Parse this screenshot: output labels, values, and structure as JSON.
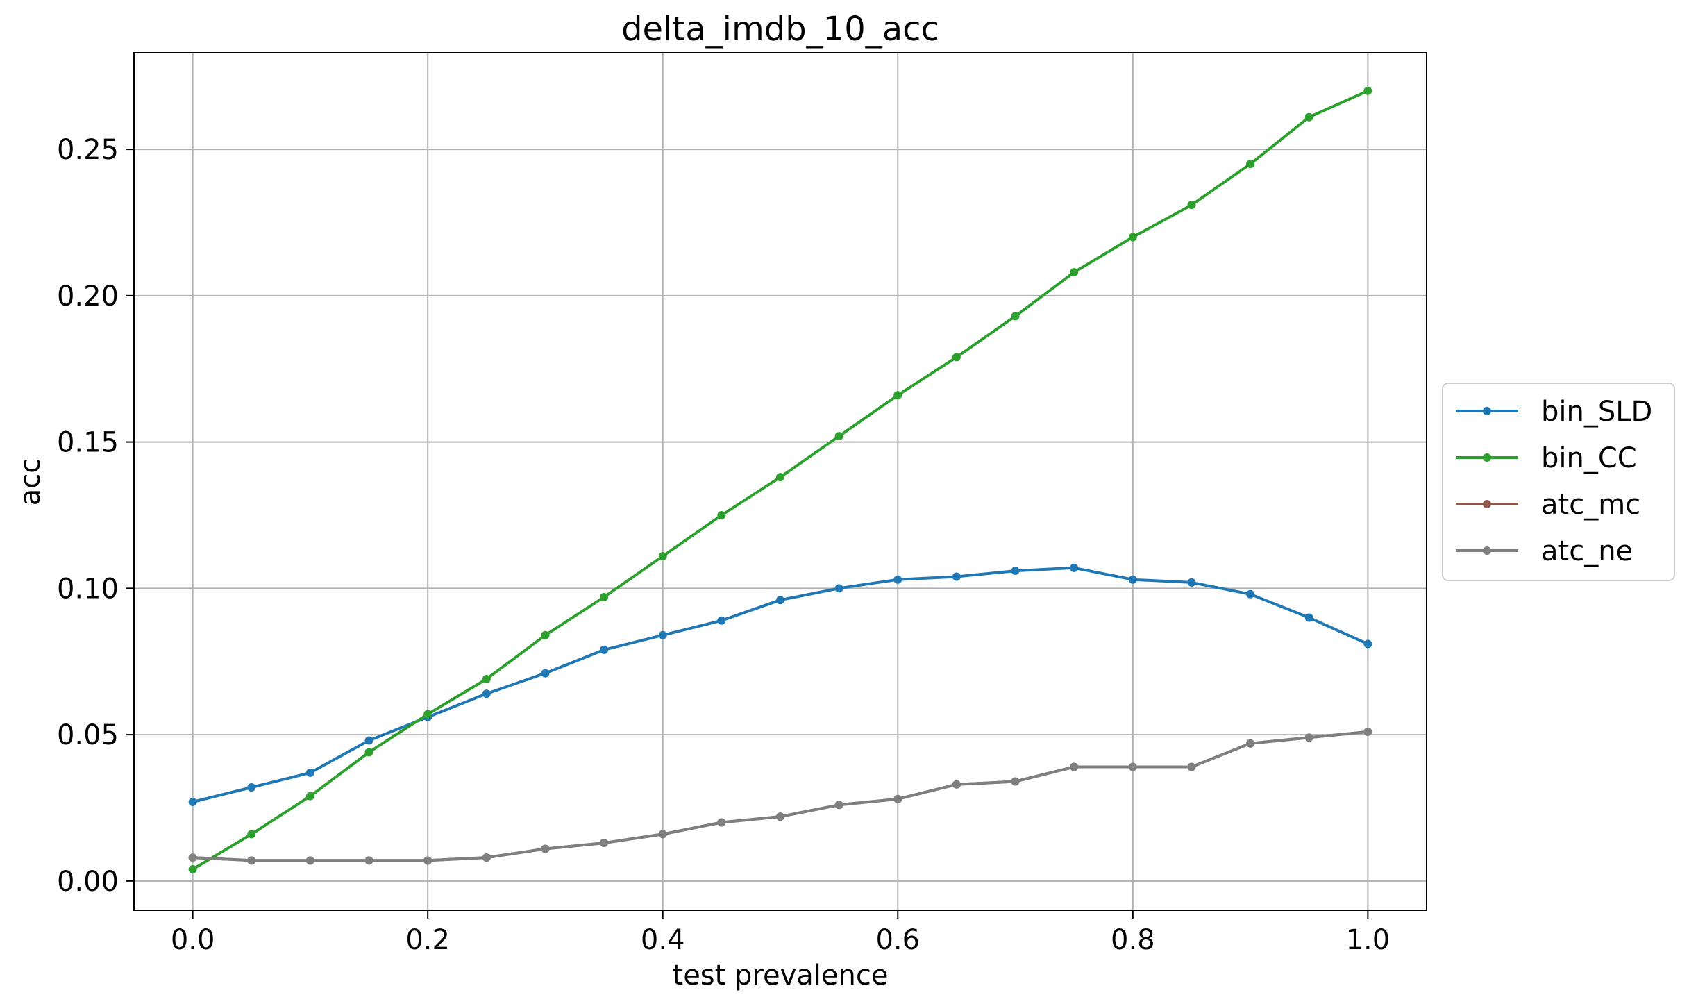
{
  "chart_data": {
    "type": "line",
    "title": "delta_imdb_10_acc",
    "xlabel": "test prevalence",
    "ylabel": "acc",
    "xlim": [
      -0.05,
      1.05
    ],
    "ylim": [
      -0.01,
      0.283
    ],
    "xticks": [
      0.0,
      0.2,
      0.4,
      0.6,
      0.8,
      1.0
    ],
    "xtick_labels": [
      "0.0",
      "0.2",
      "0.4",
      "0.6",
      "0.8",
      "1.0"
    ],
    "yticks": [
      0.0,
      0.05,
      0.1,
      0.15,
      0.2,
      0.25
    ],
    "ytick_labels": [
      "0.00",
      "0.05",
      "0.10",
      "0.15",
      "0.20",
      "0.25"
    ],
    "grid": true,
    "legend_position": "center-right outside",
    "x": [
      0.0,
      0.05,
      0.1,
      0.15,
      0.2,
      0.25,
      0.3,
      0.35,
      0.4,
      0.45,
      0.5,
      0.55,
      0.6,
      0.65,
      0.7,
      0.75,
      0.8,
      0.85,
      0.9,
      0.95,
      1.0
    ],
    "series": [
      {
        "name": "bin_SLD",
        "color": "#1f77b4",
        "values": [
          0.027,
          0.032,
          0.037,
          0.048,
          0.056,
          0.064,
          0.071,
          0.079,
          0.084,
          0.089,
          0.096,
          0.1,
          0.103,
          0.104,
          0.106,
          0.107,
          0.103,
          0.102,
          0.098,
          0.09,
          0.081
        ]
      },
      {
        "name": "bin_CC",
        "color": "#2ca02c",
        "values": [
          0.004,
          0.016,
          0.029,
          0.044,
          0.057,
          0.069,
          0.084,
          0.097,
          0.111,
          0.125,
          0.138,
          0.152,
          0.166,
          0.179,
          0.193,
          0.208,
          0.22,
          0.231,
          0.245,
          0.261,
          0.27
        ]
      },
      {
        "name": "atc_mc",
        "color": "#8c564b",
        "values": [
          0.008,
          0.007,
          0.007,
          0.007,
          0.007,
          0.008,
          0.011,
          0.013,
          0.016,
          0.02,
          0.022,
          0.026,
          0.028,
          0.033,
          0.034,
          0.039,
          0.039,
          0.039,
          0.047,
          0.049,
          0.051
        ]
      },
      {
        "name": "atc_ne",
        "color": "#7f7f7f",
        "values": [
          0.008,
          0.007,
          0.007,
          0.007,
          0.007,
          0.008,
          0.011,
          0.013,
          0.016,
          0.02,
          0.022,
          0.026,
          0.028,
          0.033,
          0.034,
          0.039,
          0.039,
          0.039,
          0.047,
          0.049,
          0.051
        ]
      }
    ]
  }
}
